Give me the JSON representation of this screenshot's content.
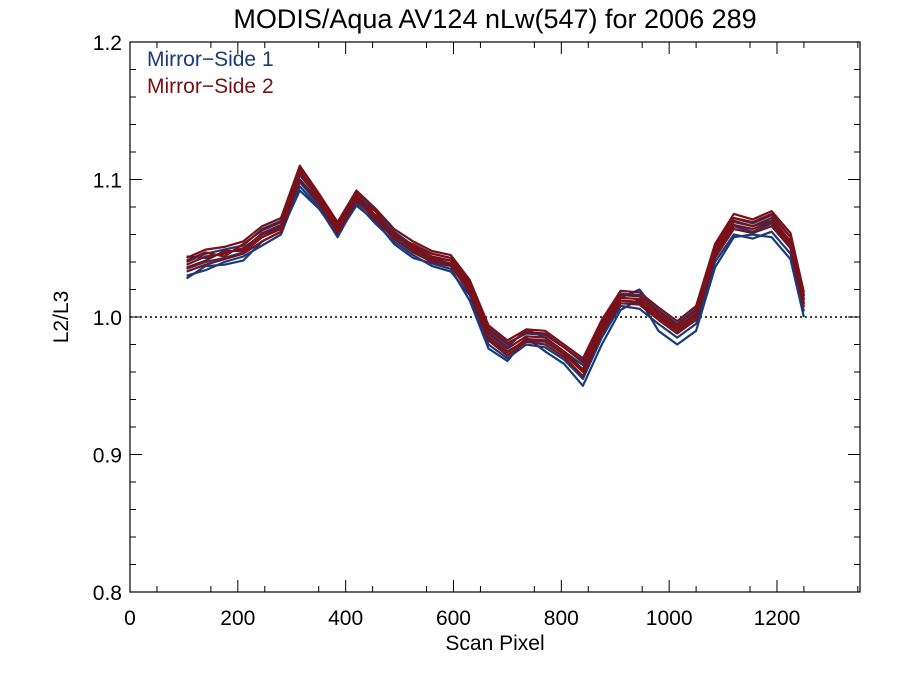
{
  "chart_data": {
    "type": "line",
    "title": "MODIS/Aqua AV124 nLw(547) for 2006 289",
    "xlabel": "Scan Pixel",
    "ylabel": "L2/L3",
    "xlim": [
      0,
      1354
    ],
    "ylim": [
      0.8,
      1.2
    ],
    "xticks": [
      0,
      200,
      400,
      600,
      800,
      1000,
      1200
    ],
    "xtick_labels": [
      "0",
      "200",
      "400",
      "600",
      "800",
      "1000",
      "1200"
    ],
    "yticks": [
      0.8,
      0.9,
      1.0,
      1.1,
      1.2
    ],
    "ytick_labels": [
      "0.8",
      "0.9",
      "1.0",
      "1.1",
      "1.2"
    ],
    "reference_line": {
      "y": 1.0,
      "style": "dotted"
    },
    "legend_position": "top-left",
    "colors": {
      "mirror_side_1": "#1a3a7a",
      "mirror_side_2": "#7a1018"
    },
    "x": [
      105,
      140,
      175,
      210,
      245,
      280,
      315,
      350,
      385,
      420,
      455,
      490,
      525,
      560,
      595,
      630,
      665,
      700,
      735,
      770,
      805,
      840,
      875,
      910,
      945,
      980,
      1015,
      1050,
      1085,
      1120,
      1155,
      1190,
      1225,
      1250
    ],
    "series": [
      {
        "name": "Mirror-Side 1",
        "group": 1,
        "values": [
          1.035,
          1.04,
          1.043,
          1.047,
          1.058,
          1.065,
          1.098,
          1.082,
          1.062,
          1.086,
          1.072,
          1.058,
          1.048,
          1.041,
          1.038,
          1.02,
          0.986,
          0.975,
          0.983,
          0.982,
          0.973,
          0.962,
          0.99,
          1.012,
          1.01,
          1.0,
          0.99,
          1.0,
          1.045,
          1.066,
          1.062,
          1.068,
          1.052,
          1.01
        ]
      },
      {
        "name": "Mirror-Side 1",
        "group": 1,
        "values": [
          1.03,
          1.034,
          1.04,
          1.044,
          1.052,
          1.06,
          1.095,
          1.08,
          1.058,
          1.083,
          1.068,
          1.055,
          1.045,
          1.037,
          1.033,
          1.016,
          0.98,
          0.97,
          0.98,
          0.978,
          0.969,
          0.955,
          0.985,
          1.008,
          1.006,
          0.995,
          0.985,
          0.995,
          1.04,
          1.06,
          1.057,
          1.062,
          1.046,
          1.004
        ]
      },
      {
        "name": "Mirror-Side 1",
        "group": 1,
        "values": [
          1.04,
          1.046,
          1.049,
          1.052,
          1.064,
          1.07,
          1.103,
          1.087,
          1.067,
          1.09,
          1.077,
          1.062,
          1.052,
          1.046,
          1.043,
          1.025,
          0.992,
          0.981,
          0.988,
          0.987,
          0.978,
          0.968,
          0.996,
          1.017,
          1.016,
          1.005,
          0.995,
          1.006,
          1.05,
          1.072,
          1.068,
          1.074,
          1.058,
          1.016
        ]
      },
      {
        "name": "Mirror-Side 1",
        "group": 1,
        "values": [
          1.028,
          1.037,
          1.038,
          1.041,
          1.055,
          1.062,
          1.092,
          1.079,
          1.06,
          1.081,
          1.07,
          1.053,
          1.043,
          1.039,
          1.035,
          1.012,
          0.977,
          0.968,
          0.985,
          0.975,
          0.966,
          0.95,
          0.98,
          1.005,
          1.013,
          0.99,
          0.98,
          0.99,
          1.036,
          1.058,
          1.06,
          1.058,
          1.042,
          1.0
        ]
      },
      {
        "name": "Mirror-Side 1",
        "group": 1,
        "values": [
          1.044,
          1.043,
          1.047,
          1.049,
          1.061,
          1.067,
          1.1,
          1.085,
          1.065,
          1.087,
          1.074,
          1.06,
          1.05,
          1.043,
          1.041,
          1.023,
          0.989,
          0.978,
          0.991,
          0.985,
          0.975,
          0.965,
          0.993,
          1.014,
          1.02,
          1.002,
          0.992,
          1.003,
          1.048,
          1.069,
          1.066,
          1.07,
          1.055,
          1.013
        ]
      },
      {
        "name": "Mirror-Side 2",
        "group": 2,
        "values": [
          1.038,
          1.044,
          1.046,
          1.05,
          1.06,
          1.066,
          1.105,
          1.086,
          1.065,
          1.088,
          1.074,
          1.06,
          1.051,
          1.044,
          1.041,
          1.022,
          0.988,
          0.977,
          0.986,
          0.985,
          0.975,
          0.962,
          0.992,
          1.014,
          1.013,
          1.002,
          0.992,
          1.002,
          1.048,
          1.07,
          1.066,
          1.072,
          1.055,
          1.012
        ]
      },
      {
        "name": "Mirror-Side 2",
        "group": 2,
        "values": [
          1.033,
          1.038,
          1.042,
          1.046,
          1.055,
          1.062,
          1.1,
          1.083,
          1.061,
          1.085,
          1.071,
          1.057,
          1.047,
          1.04,
          1.037,
          1.018,
          0.983,
          0.972,
          0.982,
          0.98,
          0.971,
          0.957,
          0.988,
          1.01,
          1.009,
          0.998,
          0.988,
          0.998,
          1.043,
          1.064,
          1.061,
          1.066,
          1.05,
          1.007
        ]
      },
      {
        "name": "Mirror-Side 2",
        "group": 2,
        "values": [
          1.043,
          1.049,
          1.051,
          1.055,
          1.066,
          1.072,
          1.11,
          1.09,
          1.069,
          1.092,
          1.079,
          1.064,
          1.055,
          1.048,
          1.045,
          1.027,
          0.994,
          0.983,
          0.991,
          0.99,
          0.98,
          0.97,
          0.998,
          1.019,
          1.018,
          1.007,
          0.997,
          1.008,
          1.053,
          1.075,
          1.071,
          1.077,
          1.061,
          1.018
        ]
      },
      {
        "name": "Mirror-Side 2",
        "group": 2,
        "values": [
          1.036,
          1.041,
          1.048,
          1.048,
          1.058,
          1.064,
          1.108,
          1.084,
          1.063,
          1.09,
          1.072,
          1.061,
          1.049,
          1.042,
          1.039,
          1.02,
          0.985,
          0.974,
          0.984,
          0.983,
          0.973,
          0.96,
          0.99,
          1.012,
          1.011,
          1.0,
          0.99,
          1.0,
          1.046,
          1.067,
          1.064,
          1.069,
          1.053,
          1.009
        ]
      },
      {
        "name": "Mirror-Side 2",
        "group": 2,
        "values": [
          1.041,
          1.047,
          1.044,
          1.053,
          1.063,
          1.069,
          1.107,
          1.088,
          1.067,
          1.086,
          1.077,
          1.058,
          1.053,
          1.046,
          1.043,
          1.025,
          0.991,
          0.98,
          0.989,
          0.988,
          0.978,
          0.967,
          0.995,
          1.016,
          1.015,
          1.004,
          0.994,
          1.005,
          1.051,
          1.072,
          1.069,
          1.075,
          1.058,
          1.015
        ]
      }
    ]
  }
}
